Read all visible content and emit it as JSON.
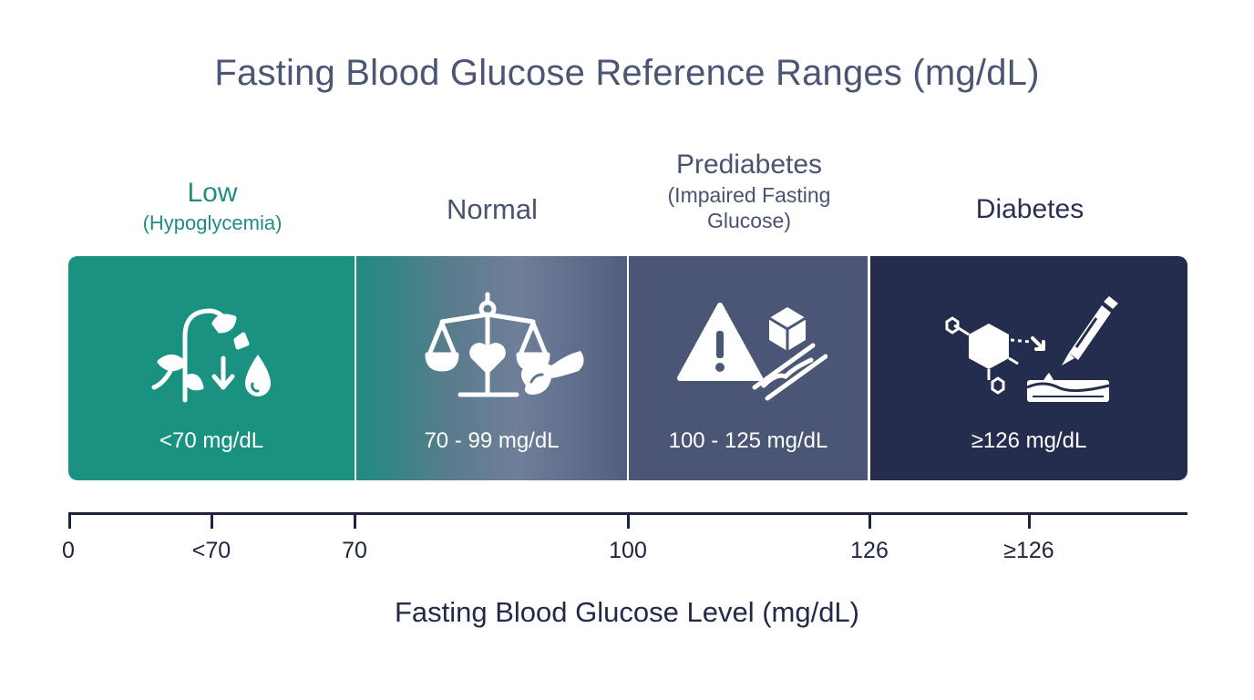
{
  "title": "Fasting Blood Glucose Reference Ranges (mg/dL)",
  "categories": [
    {
      "name": "Low",
      "detail": "(Hypoglycemia)",
      "range": "<70 mg/dL",
      "icon": "wilting-plant-drop-icon",
      "color": "#1a9282"
    },
    {
      "name": "Normal",
      "detail": "",
      "range": "70 - 99 mg/dL",
      "icon": "balance-heart-pancreas-icon",
      "color": "#6f7f99"
    },
    {
      "name": "Prediabetes",
      "detail_line1": "(Impaired Fasting",
      "detail_line2": "Glucose)",
      "range": "100 - 125 mg/dL",
      "icon": "warning-cube-vessel-icon",
      "color": "#4b5676"
    },
    {
      "name": "Diabetes",
      "detail": "",
      "range": "≥126 mg/dL",
      "icon": "molecule-insulin-pen-icon",
      "color": "#252d4f"
    }
  ],
  "axis": {
    "ticks": [
      "0",
      "<70",
      "70",
      "100",
      "126",
      "≥126"
    ],
    "title": "Fasting Blood Glucose Level (mg/dL)"
  }
}
